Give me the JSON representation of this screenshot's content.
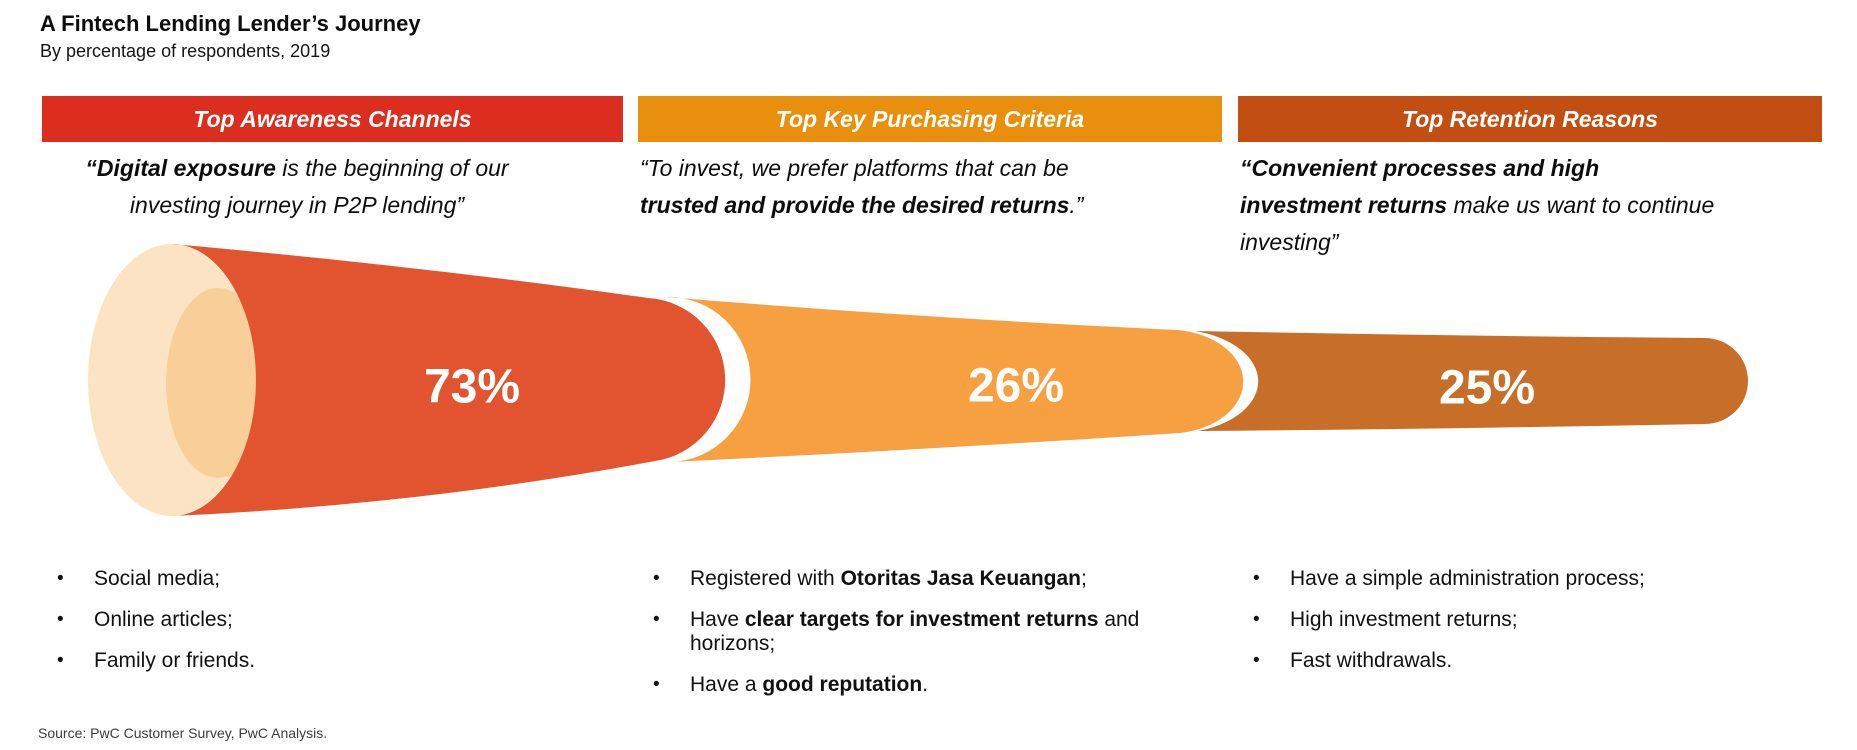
{
  "header": {
    "title": "A Fintech Lending Lender’s Journey",
    "subtitle": "By percentage of respondents, 2019"
  },
  "source_note": "Source: PwC Customer Survey, PwC Analysis.",
  "columns": [
    {
      "banner": "Top Awareness Channels",
      "banner_color": "#DB2E1F",
      "quote_lines": [
        [
          {
            "t": "“Digital exposure",
            "b": true
          },
          {
            "t": " is the beginning of our",
            "b": false
          }
        ],
        [
          {
            "t": "investing journey in P2P lending”",
            "b": false
          }
        ]
      ],
      "bullets": [
        [
          {
            "t": "Social media;",
            "b": false
          }
        ],
        [
          {
            "t": "Online articles;",
            "b": false
          }
        ],
        [
          {
            "t": "Family or friends.",
            "b": false
          }
        ]
      ]
    },
    {
      "banner": "Top Key Purchasing Criteria",
      "banner_color": "#E8900E",
      "quote_lines": [
        [
          {
            "t": "“To invest, we prefer platforms that can be",
            "b": false
          }
        ],
        [
          {
            "t": "trusted and provide the desired returns",
            "b": true
          },
          {
            "t": ".”",
            "b": false
          }
        ]
      ],
      "bullets": [
        [
          {
            "t": "Registered with ",
            "b": false
          },
          {
            "t": "Otoritas Jasa Keuangan",
            "b": true
          },
          {
            "t": ";",
            "b": false
          }
        ],
        [
          {
            "t": "Have ",
            "b": false
          },
          {
            "t": "clear targets for investment returns",
            "b": true
          },
          {
            "t": " and horizons;",
            "b": false
          }
        ],
        [
          {
            "t": "Have a ",
            "b": false
          },
          {
            "t": "good reputation",
            "b": true
          },
          {
            "t": ".",
            "b": false
          }
        ]
      ]
    },
    {
      "banner": "Top Retention Reasons",
      "banner_color": "#C24E12",
      "quote_lines": [
        [
          {
            "t": "“Convenient processes and high",
            "b": true
          }
        ],
        [
          {
            "t": "investment returns",
            "b": true
          },
          {
            "t": " make us want to continue",
            "b": false
          }
        ],
        [
          {
            "t": "investing”",
            "b": false
          }
        ]
      ],
      "bullets": [
        [
          {
            "t": "Have a simple administration process;",
            "b": false
          }
        ],
        [
          {
            "t": "High investment returns;",
            "b": false
          }
        ],
        [
          {
            "t": "Fast withdrawals.",
            "b": false
          }
        ]
      ]
    }
  ],
  "funnel": {
    "mouth": {
      "outer_color": "#FCE3C3",
      "inner_color": "#F9CF99"
    },
    "stages": [
      {
        "value": "73%",
        "color": "#E2532F"
      },
      {
        "value": "26%",
        "color": "#F6A041"
      },
      {
        "value": "25%",
        "color": "#C76F29"
      }
    ]
  },
  "chart_data": {
    "type": "funnel",
    "title": "A Fintech Lending Lender’s Journey",
    "subtitle": "By percentage of respondents, 2019",
    "stages": [
      {
        "label": "Top Awareness Channels",
        "value_pct": 73
      },
      {
        "label": "Top Key Purchasing Criteria",
        "value_pct": 26
      },
      {
        "label": "Top Retention Reasons",
        "value_pct": 25
      }
    ],
    "legend": "none",
    "orientation": "horizontal-left-to-right"
  }
}
